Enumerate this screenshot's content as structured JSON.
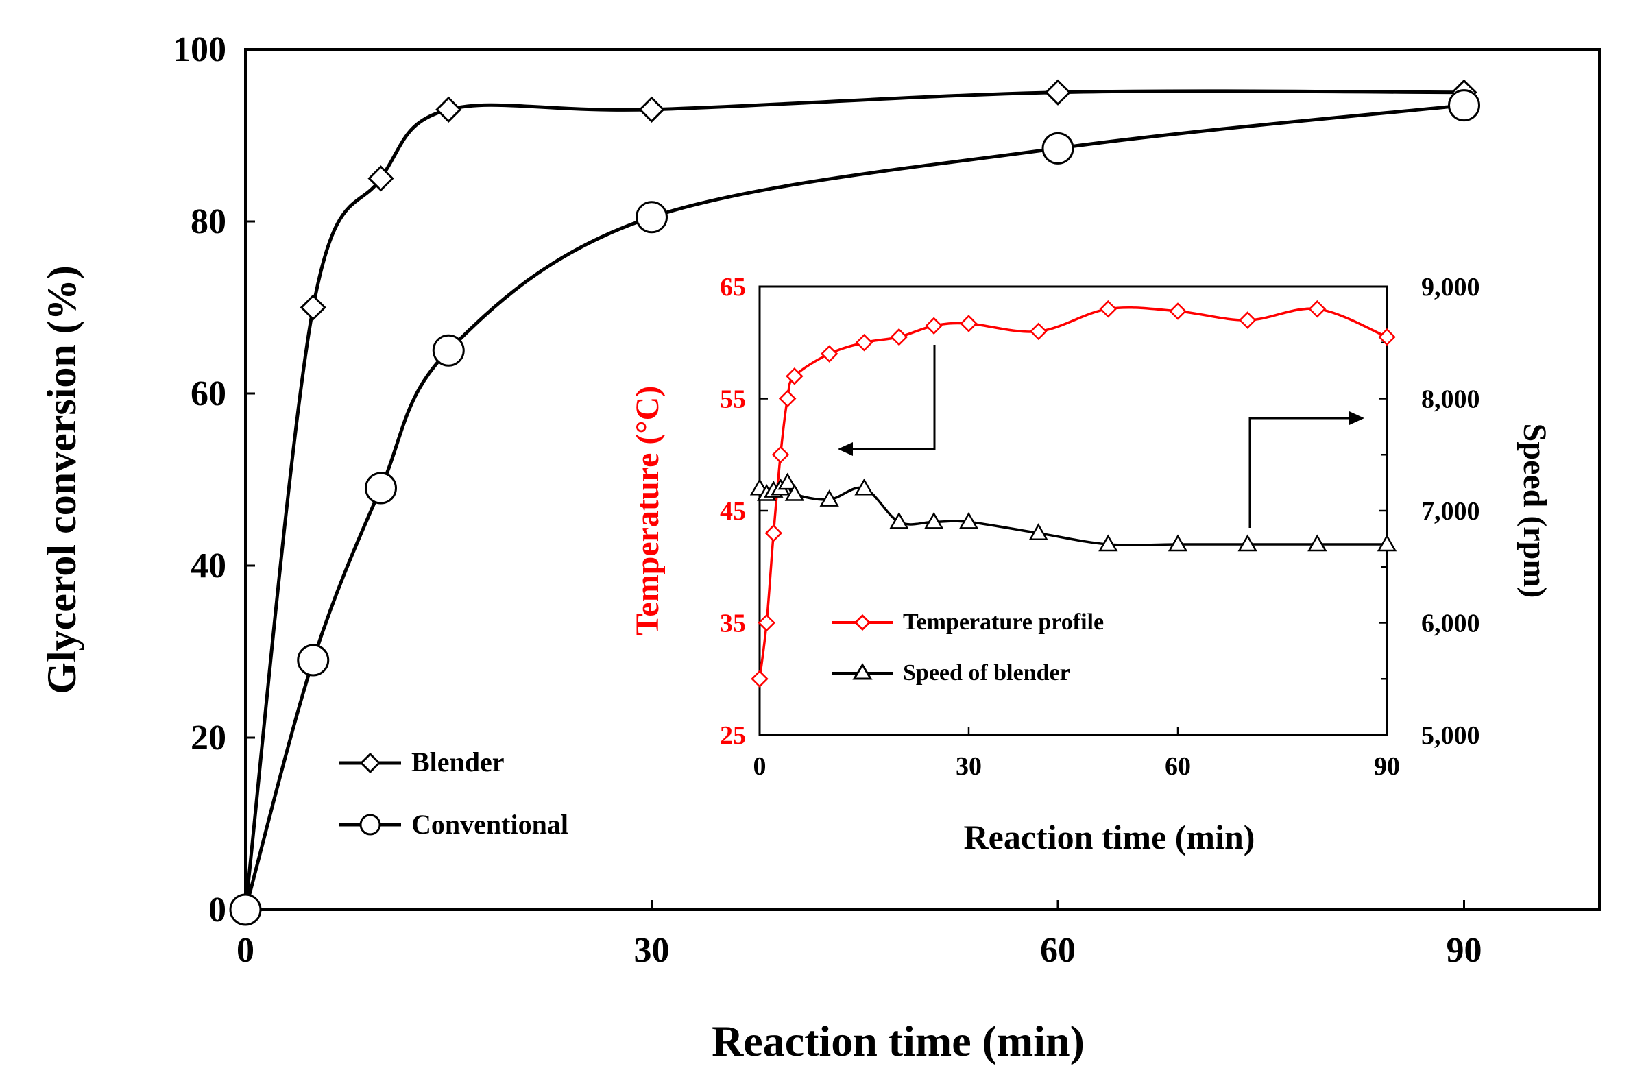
{
  "chart_data": [
    {
      "type": "line",
      "xlabel": "Reaction time (min)",
      "ylabel": "Glycerol conversion (%)",
      "xlim": [
        0,
        100
      ],
      "ylim": [
        0,
        100
      ],
      "xticks": [
        0,
        30,
        60,
        90
      ],
      "yticks": [
        0,
        20,
        40,
        60,
        80,
        100
      ],
      "legend_position": "bottom-left",
      "series": [
        {
          "name": "Blender",
          "marker": "diamond",
          "x": [
            0,
            5,
            10,
            15,
            30,
            60,
            90
          ],
          "y": [
            0,
            70,
            85,
            93,
            93,
            95,
            95
          ]
        },
        {
          "name": "Conventional",
          "marker": "circle",
          "x": [
            0,
            5,
            10,
            15,
            30,
            60,
            90
          ],
          "y": [
            0,
            29,
            49,
            65,
            80.5,
            88.5,
            93.5
          ]
        }
      ]
    },
    {
      "type": "line",
      "inset": true,
      "xlabel": "Reaction time (min)",
      "ylabel_left": "Temperature (°C)",
      "ylabel_right": "Speed (rpm)",
      "xlim": [
        0,
        90
      ],
      "ylim_left": [
        25,
        65
      ],
      "ylim_right": [
        5000,
        9000
      ],
      "xticks": [
        0,
        30,
        60,
        90
      ],
      "yticks_left": [
        25,
        35,
        45,
        55,
        65
      ],
      "yticks_right": [
        "5,000",
        "6,000",
        "7,000",
        "8,000",
        "9,000"
      ],
      "legend_position": "bottom-left",
      "annotations": [
        "arrow pointing to left axis",
        "arrow pointing to right axis"
      ],
      "series": [
        {
          "name": "Temperature profile",
          "axis": "left",
          "color": "#ff0000",
          "marker": "diamond",
          "x": [
            0,
            1,
            2,
            3,
            4,
            5,
            10,
            15,
            20,
            25,
            30,
            40,
            50,
            60,
            70,
            80,
            90
          ],
          "y": [
            30,
            35,
            43,
            50,
            55,
            57,
            59,
            60,
            60.5,
            61.5,
            61.7,
            61,
            63,
            62.8,
            62,
            63,
            60.5
          ]
        },
        {
          "name": "Speed of blender",
          "axis": "right",
          "color": "#000000",
          "marker": "triangle",
          "x": [
            0,
            1,
            2,
            3,
            4,
            5,
            10,
            15,
            20,
            25,
            30,
            40,
            50,
            60,
            70,
            80,
            90
          ],
          "y": [
            7200,
            7150,
            7180,
            7200,
            7250,
            7150,
            7100,
            7200,
            6900,
            6900,
            6900,
            6800,
            6700,
            6700,
            6700,
            6700,
            6700
          ]
        }
      ]
    }
  ]
}
